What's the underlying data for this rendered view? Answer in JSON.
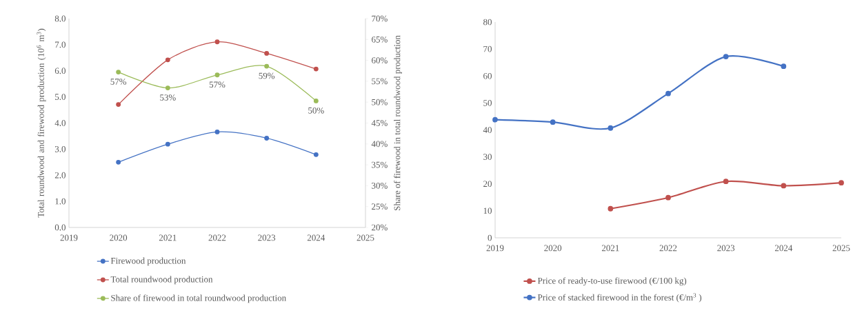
{
  "chart_data": [
    {
      "type": "line",
      "xlim": [
        2019,
        2025
      ],
      "xticks": [
        2019,
        2020,
        2021,
        2022,
        2023,
        2024,
        2025
      ],
      "ylim": [
        0,
        8
      ],
      "yticks": [
        {
          "value": 0,
          "label": "0.0"
        },
        {
          "value": 1,
          "label": "1.0"
        },
        {
          "value": 2,
          "label": "2.0"
        },
        {
          "value": 3,
          "label": "3.0"
        },
        {
          "value": 4,
          "label": "4.0"
        },
        {
          "value": 5,
          "label": "5.0"
        },
        {
          "value": 6,
          "label": "6.0"
        },
        {
          "value": 7,
          "label": "7.0"
        },
        {
          "value": 8,
          "label": "8.0"
        }
      ],
      "y2lim": [
        20,
        70
      ],
      "y2ticks": [
        {
          "value": 20,
          "label": "20%"
        },
        {
          "value": 25,
          "label": "25%"
        },
        {
          "value": 30,
          "label": "30%"
        },
        {
          "value": 35,
          "label": "35%"
        },
        {
          "value": 40,
          "label": "40%"
        },
        {
          "value": 45,
          "label": "45%"
        },
        {
          "value": 50,
          "label": "50%"
        },
        {
          "value": 55,
          "label": "55%"
        },
        {
          "value": 60,
          "label": "60%"
        },
        {
          "value": 65,
          "label": "65%"
        },
        {
          "value": 70,
          "label": "70%"
        }
      ],
      "ylabel": "Total roundwood  and firewood production (10$^{6}$ m$^{3}$)",
      "y2label": "Share of firewood in total roundwood production",
      "legend": "bottom",
      "marker": "circle",
      "x": [
        2020,
        2021,
        2022,
        2023,
        2024
      ],
      "series": [
        {
          "name": "Firewood production",
          "color": "#4472c4",
          "values": [
            2.5,
            3.19,
            3.66,
            3.42,
            2.79
          ]
        },
        {
          "name": "Total roundwood production",
          "color": "#c0504d",
          "values": [
            4.71,
            6.42,
            7.11,
            6.67,
            6.07
          ]
        },
        {
          "name": "Share of firewood in total roundwood production",
          "color": "#9bbb59",
          "axis": "y2",
          "values": [
            57.2,
            53.4,
            56.5,
            58.6,
            50.3
          ],
          "value_labels": [
            "57%",
            "53%",
            "57%",
            "59%",
            "50%"
          ]
        }
      ]
    },
    {
      "type": "line",
      "xlim": [
        2019,
        2025
      ],
      "xticks": [
        2019,
        2020,
        2021,
        2022,
        2023,
        2024,
        2025
      ],
      "ylim": [
        0,
        80
      ],
      "yticks": [
        0,
        10,
        20,
        30,
        40,
        50,
        60,
        70,
        80
      ],
      "legend": "bottom",
      "marker": "circle",
      "series": [
        {
          "name": "Price of ready-to-use firewood (€/100 kg)",
          "color": "#c0504d",
          "x": [
            2021,
            2022,
            2023,
            2024,
            2025
          ],
          "values": [
            10.8,
            14.9,
            20.9,
            19.3,
            20.4
          ]
        },
        {
          "name": "Price of stacked firewood in the forest (€/m$^{3}$ )",
          "color": "#4472c4",
          "x": [
            2019,
            2020,
            2021,
            2022,
            2023,
            2024
          ],
          "values": [
            43.8,
            42.9,
            40.7,
            53.5,
            67.2,
            63.6
          ]
        }
      ]
    }
  ]
}
